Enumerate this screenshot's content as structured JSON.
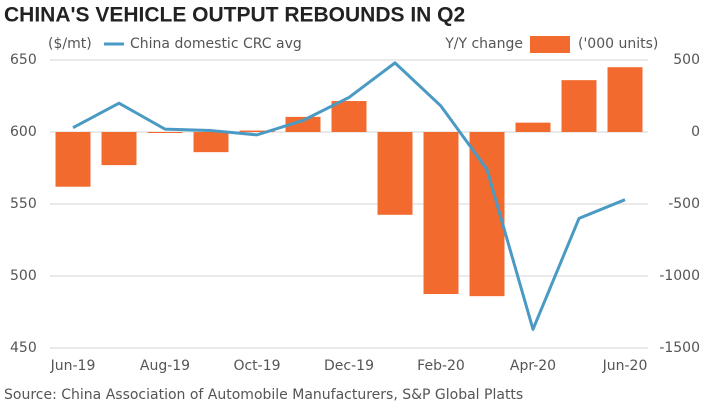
{
  "chart_data": {
    "type": "bar-line",
    "title": "CHINA'S VEHICLE OUTPUT REBOUNDS IN Q2",
    "y_label": "($/mt)",
    "y2_label": "('000 units)",
    "source": "Source: China Association of Automobile Manufacturers, S&P Global Platts",
    "categories": [
      "Jun-19",
      null,
      "Aug-19",
      null,
      "Oct-19",
      null,
      "Dec-19",
      null,
      "Feb-20",
      null,
      "Apr-20",
      null,
      "Jun-20"
    ],
    "series": [
      {
        "name": "Y/Y change",
        "type": "bar",
        "axis": "y2",
        "color": "#f26a2e",
        "values": [
          -380,
          -230,
          -5,
          -140,
          10,
          105,
          215,
          -575,
          -1125,
          -1140,
          65,
          360,
          450
        ]
      },
      {
        "name": "China domestic CRC avg",
        "type": "line",
        "axis": "y",
        "color": "#4a9ac4",
        "values": [
          603,
          620,
          602,
          601,
          598,
          608,
          624,
          648,
          618,
          574,
          463,
          540,
          553
        ]
      }
    ],
    "ylim": [
      450,
      650
    ],
    "yticks": [
      450,
      500,
      550,
      600,
      650
    ],
    "y2lim": [
      -1500,
      500
    ],
    "y2ticks": [
      500,
      0,
      -500,
      -1000,
      -1500
    ],
    "grid": true
  }
}
